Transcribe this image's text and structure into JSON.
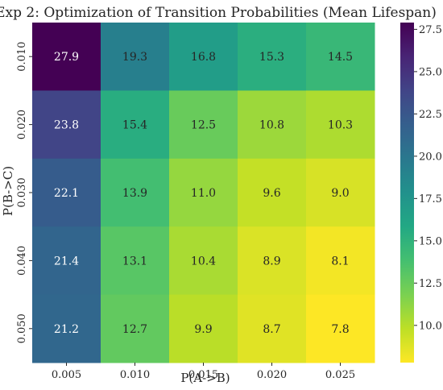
{
  "chart_data": {
    "type": "heatmap",
    "title": "Exp 2: Optimization of Transition Probabilities (Mean Lifespan)",
    "xlabel": "P(A->B)",
    "ylabel": "P(B->C)",
    "x_categories": [
      "0.005",
      "0.010",
      "0.015",
      "0.020",
      "0.025"
    ],
    "y_categories": [
      "0.010",
      "0.020",
      "0.030",
      "0.040",
      "0.050"
    ],
    "values": [
      [
        27.9,
        19.3,
        16.8,
        15.3,
        14.5
      ],
      [
        23.8,
        15.4,
        12.5,
        10.8,
        10.3
      ],
      [
        22.1,
        13.9,
        11.0,
        9.6,
        9.0
      ],
      [
        21.4,
        13.1,
        10.4,
        8.9,
        8.1
      ],
      [
        21.2,
        12.7,
        9.9,
        8.7,
        7.8
      ]
    ],
    "value_labels": [
      [
        "27.9",
        "19.3",
        "16.8",
        "15.3",
        "14.5"
      ],
      [
        "23.8",
        "15.4",
        "12.5",
        "10.8",
        "10.3"
      ],
      [
        "22.1",
        "13.9",
        "11.0",
        "9.6",
        "9.0"
      ],
      [
        "21.4",
        "13.1",
        "10.4",
        "8.9",
        "8.1"
      ],
      [
        "21.2",
        "12.7",
        "9.9",
        "8.7",
        "7.8"
      ]
    ],
    "colormap": "viridis_r",
    "colorbar": {
      "range": [
        7.8,
        27.9
      ],
      "ticks": [
        10.0,
        12.5,
        15.0,
        17.5,
        20.0,
        22.5,
        25.0,
        27.5
      ],
      "tick_labels": [
        "10.0",
        "12.5",
        "15.0",
        "17.5",
        "20.0",
        "22.5",
        "25.0",
        "27.5"
      ]
    },
    "grid": false
  }
}
